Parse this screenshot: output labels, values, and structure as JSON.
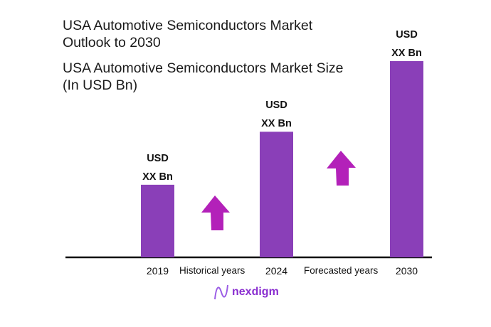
{
  "chart_data": {
    "type": "bar",
    "title": "USA Automotive Semiconductors Market Outlook to 2030",
    "subtitle": "USA Automotive Semiconductors Market Size (In USD Bn)",
    "categories": [
      "2019",
      "2024",
      "2030"
    ],
    "values_relative": [
      0.37,
      0.64,
      1.0
    ],
    "data_labels": [
      [
        "USD",
        "XX Bn"
      ],
      [
        "USD",
        "XX Bn"
      ],
      [
        "USD",
        "XX Bn"
      ]
    ],
    "period_labels": [
      "Historical years",
      "Forecasted years"
    ],
    "grid": false,
    "colors": {
      "bar": "#8a3fb8",
      "arrow": "#b321b9",
      "axis": "#111111"
    }
  },
  "title_lines": [
    "USA Automotive Semiconductors Market",
    "Outlook to 2030"
  ],
  "subtitle_lines": [
    "USA Automotive Semiconductors Market Size",
    "(In USD Bn)"
  ],
  "logo": {
    "text": "nexdigm"
  }
}
